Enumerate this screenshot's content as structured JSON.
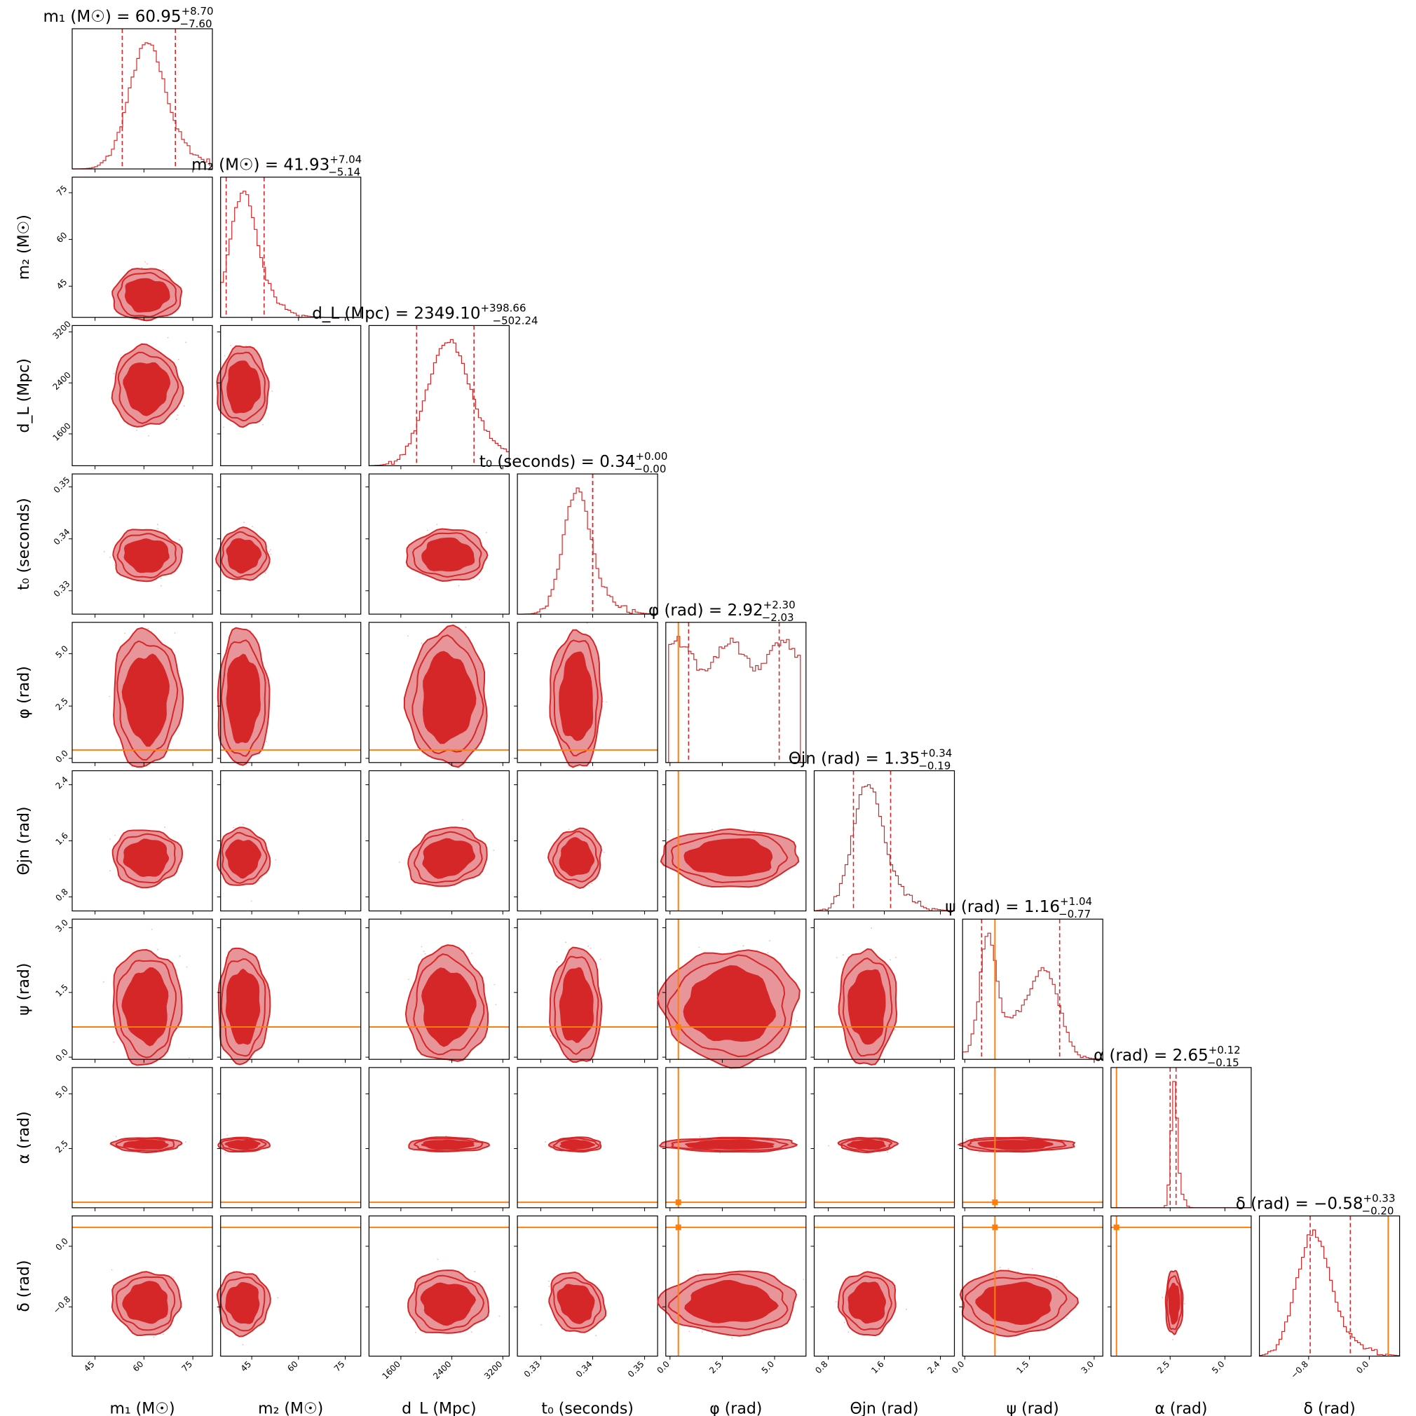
{
  "chart_data": {
    "type": "corner",
    "colors": {
      "posterior": "#d62728",
      "contour_inner": "#d62728",
      "contour_outer": "#e8959a",
      "scatter": "#f3b7bd",
      "truth": "#ff7f0e"
    },
    "parameters": [
      {
        "key": "m1",
        "label": "m₁ (M☉)",
        "title": "m₁ (M☉) = 60.95",
        "median": 60.95,
        "plus": "+8.70",
        "minus": "−7.60",
        "range": [
          38,
          81
        ],
        "ticks": [
          "45",
          "60",
          "75"
        ],
        "tick_values": [
          45,
          60,
          75
        ],
        "truth": null
      },
      {
        "key": "m2",
        "label": "m₂ (M☉)",
        "title": "m₂ (M☉) = 41.93",
        "median": 41.93,
        "plus": "+7.04",
        "minus": "−5.14",
        "range": [
          35,
          80
        ],
        "ticks": [
          "45",
          "60",
          "75"
        ],
        "tick_values": [
          45,
          60,
          75
        ],
        "truth": null
      },
      {
        "key": "dL",
        "label": "d_L (Mpc)",
        "title": "d_L (Mpc) = 2349.10",
        "median": 2349.1,
        "plus": "+398.66",
        "minus": "−502.24",
        "range": [
          1100,
          3300
        ],
        "ticks": [
          "1600",
          "2400",
          "3200"
        ],
        "tick_values": [
          1600,
          2400,
          3200
        ],
        "truth": null
      },
      {
        "key": "t0",
        "label": "t₀ (seconds)",
        "title": "t₀ (seconds) = 0.34",
        "median": 0.34,
        "plus": "+0.00",
        "minus": "−0.00",
        "range": [
          0.3255,
          0.3525
        ],
        "ticks": [
          "0.33",
          "0.34",
          "0.35"
        ],
        "tick_values": [
          0.33,
          0.34,
          0.35
        ],
        "truth": null
      },
      {
        "key": "phi",
        "label": "φ (rad)",
        "title": "φ (rad) = 2.92",
        "median": 2.92,
        "plus": "+2.30",
        "minus": "−2.03",
        "range": [
          -0.2,
          6.5
        ],
        "ticks": [
          "0.0",
          "2.5",
          "5.0"
        ],
        "tick_values": [
          0.0,
          2.5,
          5.0
        ],
        "truth": 0.4
      },
      {
        "key": "theta",
        "label": "Θjn (rad)",
        "title": "Θjn (rad) = 1.35",
        "median": 1.35,
        "plus": "+0.34",
        "minus": "−0.19",
        "range": [
          0.6,
          2.6
        ],
        "ticks": [
          "0.8",
          "1.6",
          "2.4"
        ],
        "tick_values": [
          0.8,
          1.6,
          2.4
        ],
        "truth": null
      },
      {
        "key": "psi",
        "label": "ψ (rad)",
        "title": "ψ (rad) = 1.16",
        "median": 1.16,
        "plus": "+1.04",
        "minus": "−0.77",
        "range": [
          -0.05,
          3.2
        ],
        "ticks": [
          "0.0",
          "1.5",
          "3.0"
        ],
        "tick_values": [
          0.0,
          1.5,
          3.0
        ],
        "truth": 0.7
      },
      {
        "key": "alpha",
        "label": "α (rad)",
        "title": "α (rad) = 2.65",
        "median": 2.65,
        "plus": "+0.12",
        "minus": "−0.15",
        "range": [
          -0.2,
          6.2
        ],
        "ticks": [
          "2.5",
          "5.0"
        ],
        "tick_values": [
          2.5,
          5.0
        ],
        "truth": 0.05
      },
      {
        "key": "delta",
        "label": "δ (rad)",
        "title": "δ (rad) = −0.58",
        "median": -0.58,
        "plus": "+0.33",
        "minus": "−0.20",
        "range": [
          -1.45,
          0.4
        ],
        "ticks": [
          "−0.8",
          "0.0"
        ],
        "tick_values": [
          -0.8,
          0.0
        ],
        "truth": 0.25
      }
    ]
  }
}
